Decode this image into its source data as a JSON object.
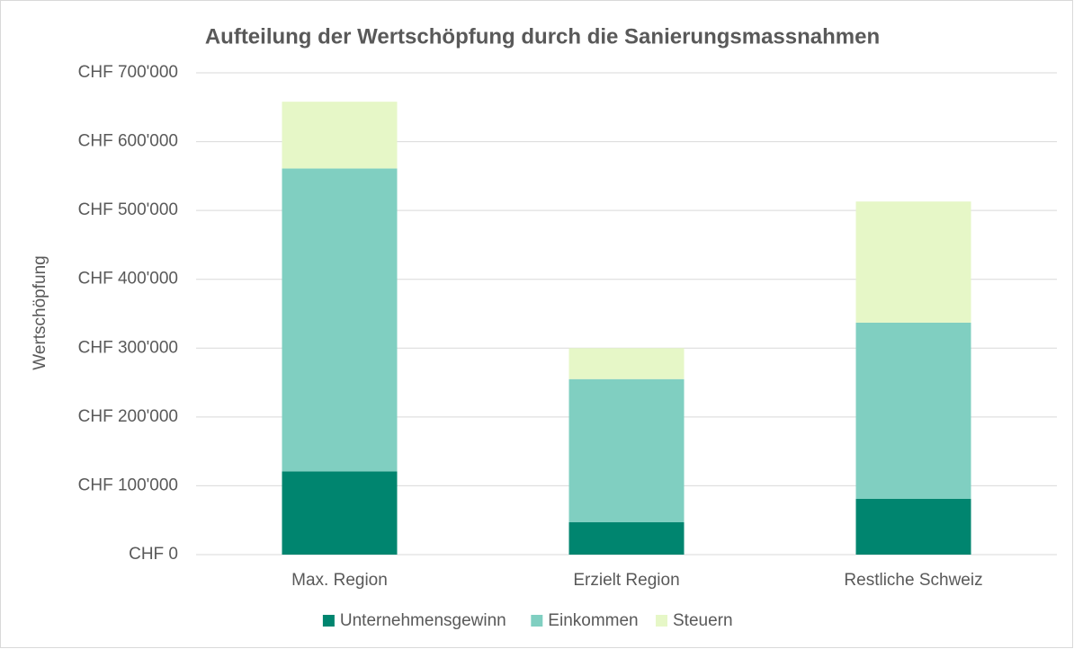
{
  "chart_data": {
    "type": "stacked_bar",
    "title": "Aufteilung der Wertschöpfung durch die Sanierungsmassnahmen",
    "y_label": "Wertschöpfung",
    "categories": [
      "Max. Region",
      "Erzielt Region",
      "Restliche Schweiz"
    ],
    "series": [
      {
        "name": "Unternehmensgewinn",
        "color": "#00856f",
        "values": [
          121000,
          47000,
          81000
        ]
      },
      {
        "name": "Einkommen",
        "color": "#80cfc1",
        "values": [
          440000,
          208000,
          256000
        ]
      },
      {
        "name": "Steuern",
        "color": "#e6f7c7",
        "values": [
          97000,
          45000,
          176000
        ]
      }
    ],
    "ylim": [
      0,
      700000
    ],
    "yticks": [
      {
        "value": 0,
        "label": "CHF 0"
      },
      {
        "value": 100000,
        "label": "CHF 100'000"
      },
      {
        "value": 200000,
        "label": "CHF 200'000"
      },
      {
        "value": 300000,
        "label": "CHF 300'000"
      },
      {
        "value": 400000,
        "label": "CHF 400'000"
      },
      {
        "value": 500000,
        "label": "CHF 500'000"
      },
      {
        "value": 600000,
        "label": "CHF 600'000"
      },
      {
        "value": 700000,
        "label": "CHF 700'000"
      }
    ],
    "grid": true,
    "legend": "bottom"
  }
}
